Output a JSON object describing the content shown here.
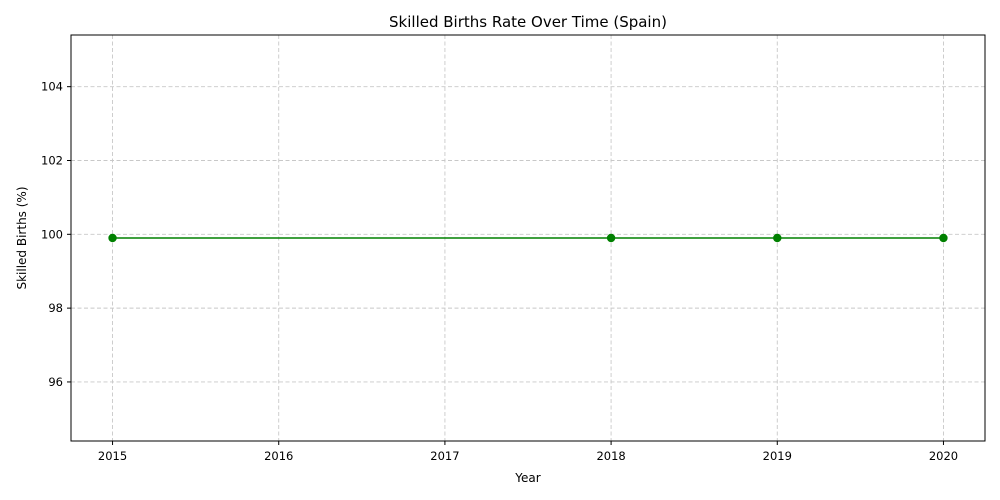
{
  "chart_data": {
    "type": "line",
    "title": "Skilled Births Rate Over Time (Spain)",
    "xlabel": "Year",
    "ylabel": "Skilled Births (%)",
    "x": [
      2015,
      2018,
      2019,
      2020
    ],
    "series": [
      {
        "values": [
          99.9,
          99.9,
          99.9,
          99.9
        ],
        "color": "#008000",
        "marker": "circle"
      }
    ],
    "xlim": [
      2014.75,
      2020.25
    ],
    "ylim": [
      94.4,
      105.4
    ],
    "xticks": [
      2015,
      2016,
      2017,
      2018,
      2019,
      2020
    ],
    "yticks": [
      96,
      98,
      100,
      102,
      104
    ],
    "grid": true,
    "grid_style": "dashed",
    "grid_color": "#c8c8c8"
  }
}
